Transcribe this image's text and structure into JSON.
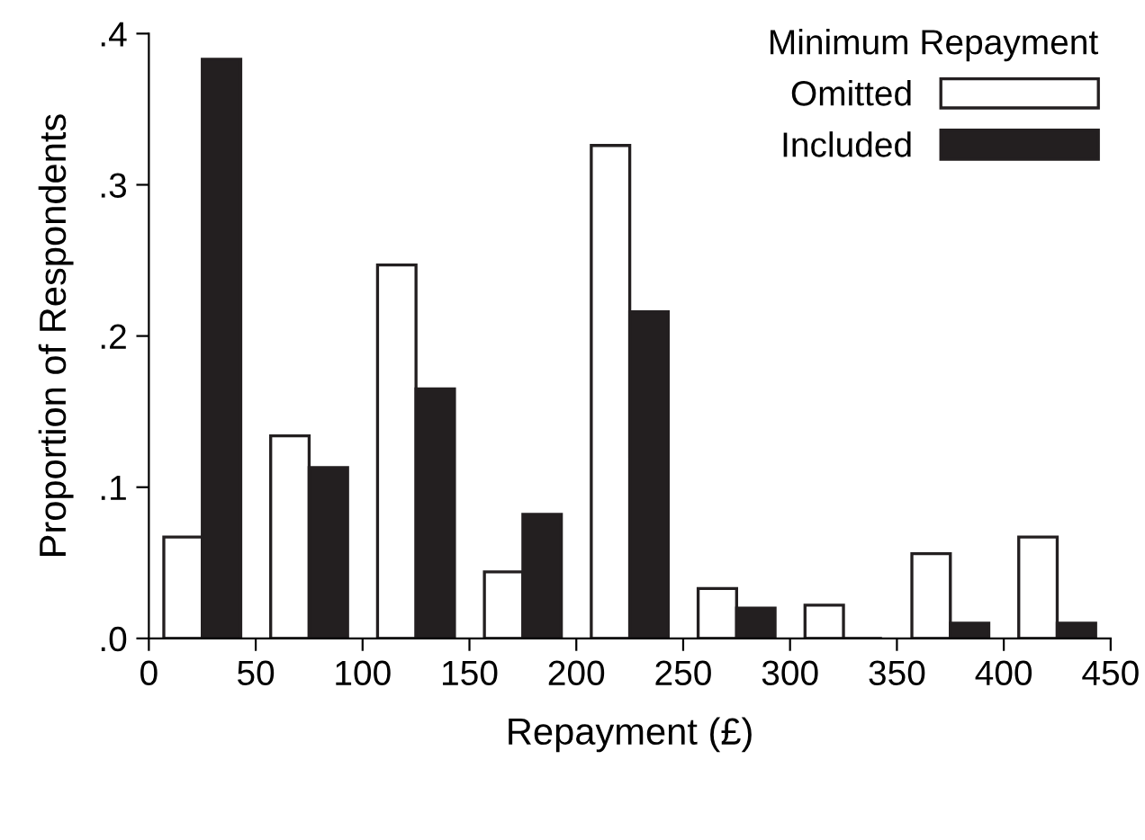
{
  "chart_data": {
    "type": "bar",
    "xlabel": "Repayment (£)",
    "ylabel": "Proportion of Respondents",
    "legend_title": "Minimum Repayment",
    "legend": "top right",
    "x": [
      25,
      75,
      125,
      175,
      225,
      275,
      325,
      375,
      425
    ],
    "series": [
      {
        "name": "Omitted",
        "color": "#ffffff",
        "values": [
          0.067,
          0.134,
          0.247,
          0.044,
          0.326,
          0.033,
          0.022,
          0.056,
          0.067
        ]
      },
      {
        "name": "Included",
        "color": "#231f20",
        "values": [
          0.383,
          0.113,
          0.165,
          0.082,
          0.216,
          0.02,
          0,
          0.01,
          0.01
        ]
      }
    ],
    "xlim": [
      0,
      450
    ],
    "xticks": [
      0,
      50,
      100,
      150,
      200,
      250,
      300,
      350,
      400,
      450
    ],
    "ylim": [
      0,
      0.4
    ],
    "yticks": [
      {
        "value": 0,
        "label": ".0"
      },
      {
        "value": 0.1,
        "label": ".1"
      },
      {
        "value": 0.2,
        "label": ".2"
      },
      {
        "value": 0.3,
        "label": ".3"
      },
      {
        "value": 0.4,
        "label": ".4"
      }
    ],
    "grid": false
  }
}
